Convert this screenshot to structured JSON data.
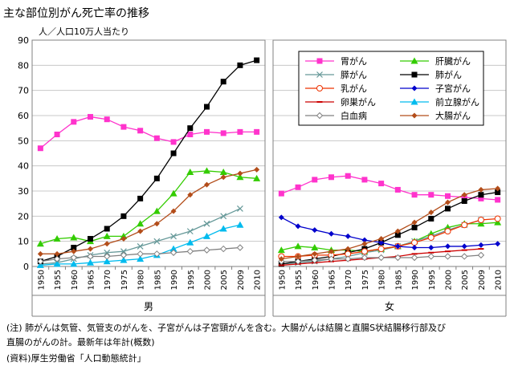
{
  "title": "主な部位別がん死亡率の推移",
  "unit_label": "人／人口10万人当たり",
  "notes": {
    "line1": "(注)  肺がんは気管、気管支のがんを、子宮がんは子宮頸がんを含む。大腸がんは結腸と直腸S状結腸移行部及び",
    "line2": "       直腸のがんの計。最新年は年計(概数)",
    "source": "(資料)厚生労働省「人口動態統計」"
  },
  "chart_data": {
    "type": "line",
    "x": [
      "1950",
      "1955",
      "1960",
      "1965",
      "1970",
      "1975",
      "1980",
      "1985",
      "1990",
      "1995",
      "2000",
      "2005",
      "2009",
      "2010"
    ],
    "ylim": [
      0,
      90
    ],
    "yticks": [
      0,
      10,
      20,
      30,
      40,
      50,
      60,
      70,
      80,
      90
    ],
    "grid": true,
    "panels": [
      {
        "label": "男",
        "series": [
          {
            "name": "胃がん",
            "color": "#ff33cc",
            "marker": "square",
            "values": [
              47,
              52.5,
              57.5,
              59.5,
              58.5,
              55.5,
              54,
              51,
              49.5,
              52.5,
              53.5,
              53,
              53.5,
              53.5
            ]
          },
          {
            "name": "肝臓がん",
            "color": "#33cc00",
            "marker": "triangle",
            "values": [
              9,
              11,
              11.5,
              10,
              12,
              12,
              17,
              22,
              29,
              37.5,
              38,
              37.5,
              35.5,
              35
            ]
          },
          {
            "name": "膵がん",
            "color": "#669999",
            "marker": "x",
            "values": [
              1,
              1.5,
              3,
              4.5,
              5.5,
              6,
              8,
              10,
              12,
              14,
              17,
              20,
              23,
              null
            ]
          },
          {
            "name": "肺がん",
            "color": "#000000",
            "marker": "square",
            "values": [
              2,
              4,
              7.5,
              11,
              15,
              20,
              27,
              35,
              45,
              55,
              63.5,
              73.5,
              80,
              82
            ]
          },
          {
            "name": "前立腺がん",
            "color": "#00bbee",
            "marker": "triangle",
            "values": [
              0.5,
              1,
              1,
              1.5,
              2,
              2.5,
              3,
              4.5,
              7,
              9.5,
              12,
              15,
              16.5,
              null
            ]
          },
          {
            "name": "白血病",
            "color": "#808080",
            "marker": "diamond-open",
            "values": [
              2,
              3,
              3.5,
              4,
              4,
              4.5,
              5,
              5,
              5.5,
              6,
              6.5,
              7,
              7.5,
              null
            ]
          },
          {
            "name": "大腸がん",
            "color": "#b34d1a",
            "marker": "diamond",
            "values": [
              5,
              5,
              6,
              7,
              9,
              11,
              14,
              17,
              22,
              28.5,
              32.5,
              35.5,
              37,
              38.5
            ]
          }
        ]
      },
      {
        "label": "女",
        "series": [
          {
            "name": "胃がん",
            "color": "#ff33cc",
            "marker": "square",
            "values": [
              29,
              31.5,
              34.5,
              35.5,
              36,
              34.5,
              33,
              30.5,
              28.5,
              28.5,
              28,
              27.5,
              27,
              26.5
            ]
          },
          {
            "name": "肝臓がん",
            "color": "#33cc00",
            "marker": "triangle",
            "values": [
              6.5,
              8,
              7.5,
              6.5,
              6.5,
              6,
              7,
              8,
              10,
              13,
              15.5,
              17,
              17,
              17.5
            ]
          },
          {
            "name": "膵がん",
            "color": "#669999",
            "marker": "x",
            "values": [
              1,
              1.5,
              2,
              3,
              4,
              5.5,
              6.5,
              8,
              10,
              12,
              14.5,
              16.5,
              18.5,
              null
            ]
          },
          {
            "name": "肺がん",
            "color": "#000000",
            "marker": "square",
            "values": [
              1,
              2,
              3,
              4,
              5.5,
              7,
              9.5,
              12.5,
              15.5,
              19,
              23,
              26,
              28.5,
              29.5
            ]
          },
          {
            "name": "乳がん",
            "color": "#ee3300",
            "marker": "circle-open",
            "values": [
              4,
              4,
              4.5,
              4.5,
              5,
              6,
              7,
              8,
              9.5,
              11.5,
              14,
              16.5,
              18.5,
              19
            ]
          },
          {
            "name": "子宮がん",
            "color": "#0000cc",
            "marker": "diamond",
            "values": [
              19.5,
              16,
              14.5,
              13,
              12,
              10.5,
              9.5,
              8,
              7.5,
              7.5,
              8,
              8,
              8.5,
              9
            ]
          },
          {
            "name": "卵巣がん",
            "color": "#cc0000",
            "marker": "dash",
            "values": [
              0.5,
              1,
              1.5,
              2,
              2.5,
              3,
              3.5,
              4,
              5,
              5.5,
              6,
              6.5,
              7,
              null
            ]
          },
          {
            "name": "白血病",
            "color": "#808080",
            "marker": "diamond-open",
            "values": [
              2,
              2,
              2.5,
              3,
              3,
              3.5,
              3.5,
              3.5,
              3.5,
              4,
              4,
              4,
              4.5,
              null
            ]
          },
          {
            "name": "大腸がん",
            "color": "#b34d1a",
            "marker": "diamond",
            "values": [
              3,
              4,
              5,
              6,
              7,
              9,
              11,
              14,
              17.5,
              21.5,
              25.5,
              28.5,
              30.5,
              31
            ]
          }
        ]
      }
    ],
    "legend": {
      "placement": "top-right",
      "entries": [
        {
          "name": "胃がん",
          "color": "#ff33cc",
          "marker": "square"
        },
        {
          "name": "肝臓がん",
          "color": "#33cc00",
          "marker": "triangle"
        },
        {
          "name": "膵がん",
          "color": "#669999",
          "marker": "x"
        },
        {
          "name": "肺がん",
          "color": "#000000",
          "marker": "square"
        },
        {
          "name": "乳がん",
          "color": "#ee3300",
          "marker": "circle-open"
        },
        {
          "name": "子宮がん",
          "color": "#0000cc",
          "marker": "diamond"
        },
        {
          "name": "卵巣がん",
          "color": "#cc0000",
          "marker": "dash"
        },
        {
          "name": "前立腺がん",
          "color": "#00bbee",
          "marker": "triangle"
        },
        {
          "name": "白血病",
          "color": "#808080",
          "marker": "diamond-open"
        },
        {
          "name": "大腸がん",
          "color": "#b34d1a",
          "marker": "diamond"
        }
      ]
    }
  }
}
